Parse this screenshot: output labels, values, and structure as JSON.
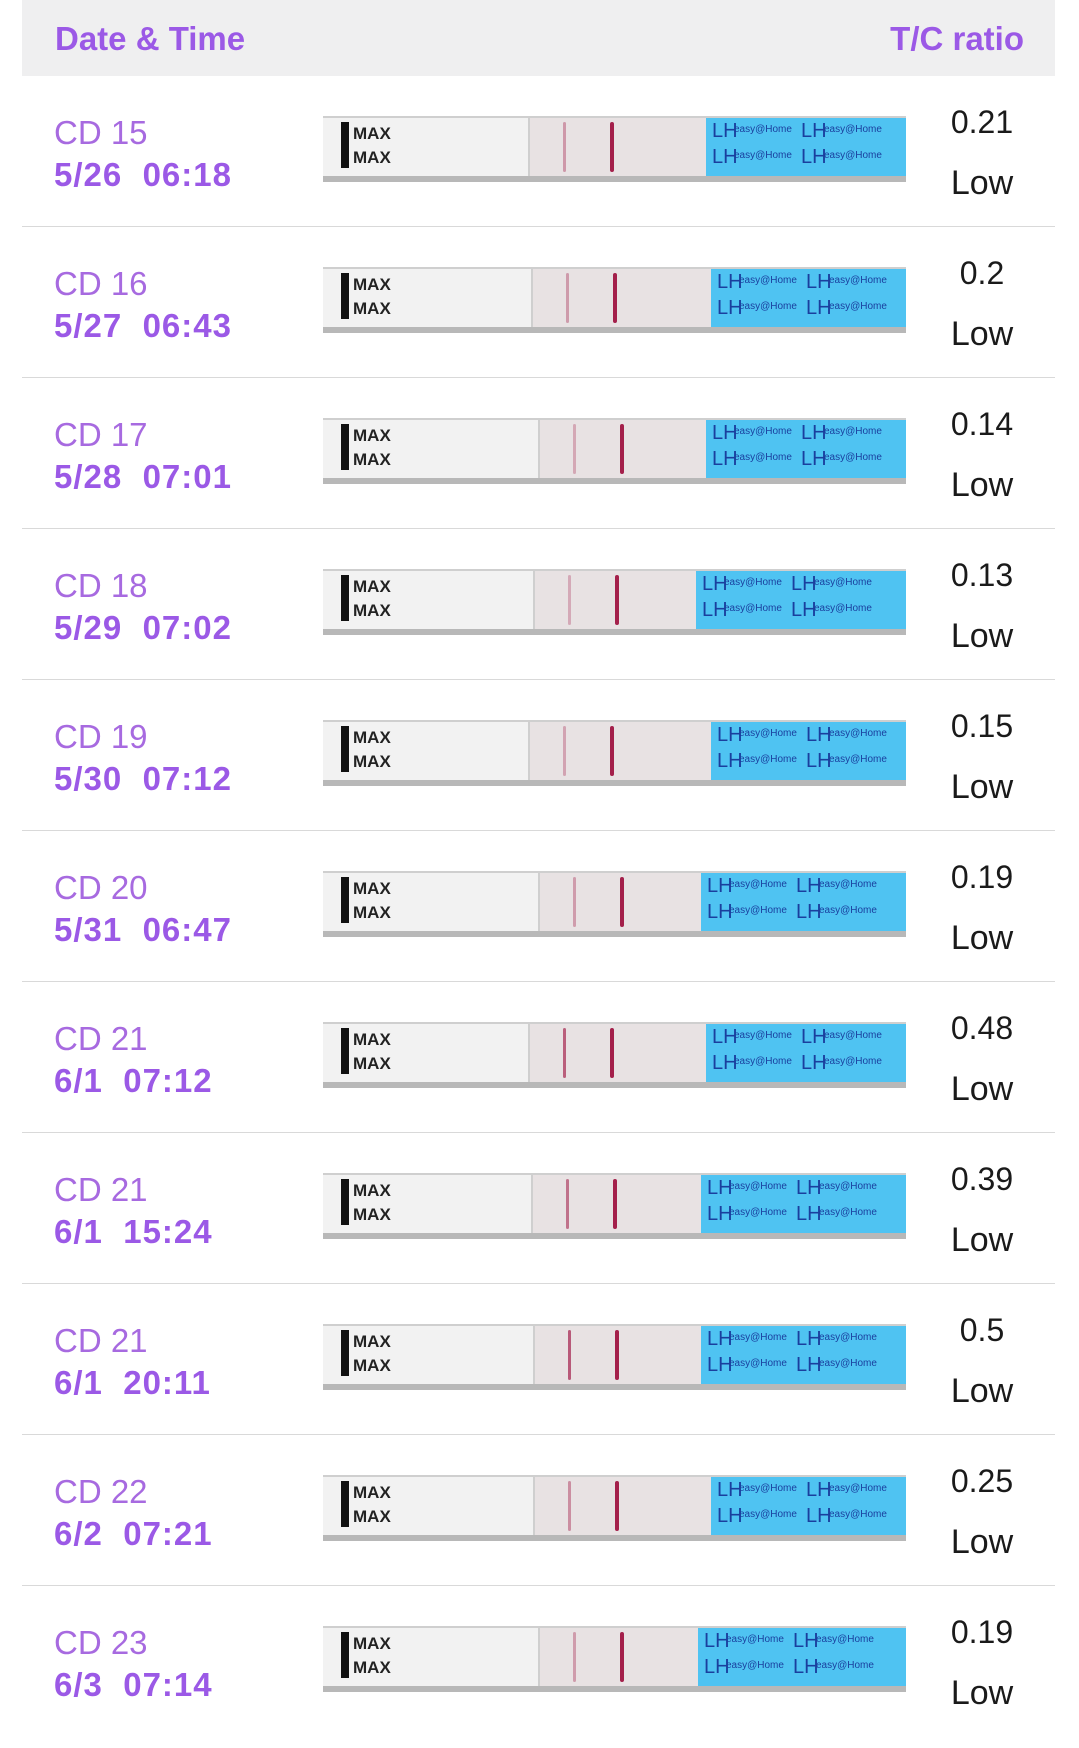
{
  "header": {
    "date_time_label": "Date & Time",
    "ratio_label": "T/C ratio"
  },
  "strip": {
    "max_label": "MAX",
    "brand_text": "LH",
    "brand_name": "easy@Home"
  },
  "colors": {
    "accent": "#9b59e6",
    "test_line": "#a4204b",
    "handle": "#4fc3f2"
  },
  "entries": [
    {
      "cd": "CD 15",
      "datetime": "5/26  06:18",
      "ratio": "0.21",
      "level": "Low"
    },
    {
      "cd": "CD 16",
      "datetime": "5/27  06:43",
      "ratio": "0.2",
      "level": "Low"
    },
    {
      "cd": "CD 17",
      "datetime": "5/28  07:01",
      "ratio": "0.14",
      "level": "Low"
    },
    {
      "cd": "CD 18",
      "datetime": "5/29  07:02",
      "ratio": "0.13",
      "level": "Low"
    },
    {
      "cd": "CD 19",
      "datetime": "5/30  07:12",
      "ratio": "0.15",
      "level": "Low"
    },
    {
      "cd": "CD 20",
      "datetime": "5/31  06:47",
      "ratio": "0.19",
      "level": "Low"
    },
    {
      "cd": "CD 21",
      "datetime": "6/1  07:12",
      "ratio": "0.48",
      "level": "Low"
    },
    {
      "cd": "CD 21",
      "datetime": "6/1  15:24",
      "ratio": "0.39",
      "level": "Low"
    },
    {
      "cd": "CD 21",
      "datetime": "6/1  20:11",
      "ratio": "0.5",
      "level": "Low"
    },
    {
      "cd": "CD 22",
      "datetime": "6/2  07:21",
      "ratio": "0.25",
      "level": "Low"
    },
    {
      "cd": "CD 23",
      "datetime": "6/3  07:14",
      "ratio": "0.19",
      "level": "Low"
    }
  ]
}
